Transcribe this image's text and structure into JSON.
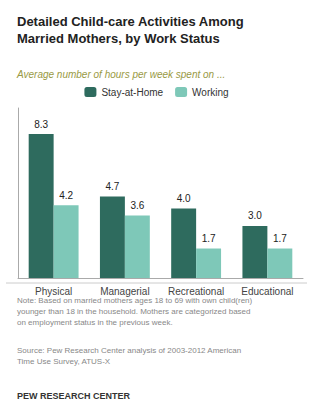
{
  "chart_data": {
    "type": "bar",
    "title": "Detailed Child-care Activities Among\nMarried Mothers, by Work Status",
    "subtitle": "Average number of hours per week spent on ...",
    "categories": [
      "Physical",
      "Managerial",
      "Recreational",
      "Educational"
    ],
    "series": [
      {
        "name": "Stay-at-Home",
        "color": "#2e6b5e",
        "values": [
          8.3,
          4.7,
          4.0,
          3.0
        ],
        "value_labels": [
          "8.3",
          "4.7",
          "4.0",
          "3.0"
        ]
      },
      {
        "name": "Working",
        "color": "#7ec8b8",
        "values": [
          4.2,
          3.6,
          1.7,
          1.7
        ],
        "value_labels": [
          "4.2",
          "3.6",
          "1.7",
          "1.7"
        ]
      }
    ],
    "ylim": [
      0,
      9.8
    ],
    "grid": false,
    "legend": "top",
    "data_labels": true,
    "tick_labels": "x",
    "annotations": [
      "Note: Based on married mothers ages 18 to 69 with own child(ren)\nyounger than 18 in the household. Mothers are categorized based\non employment status in the previous week.",
      "Source: Pew Research Center analysis of 2003-2012 American\nTime Use Survey, ATUS-X",
      "PEW RESEARCH CENTER"
    ]
  }
}
